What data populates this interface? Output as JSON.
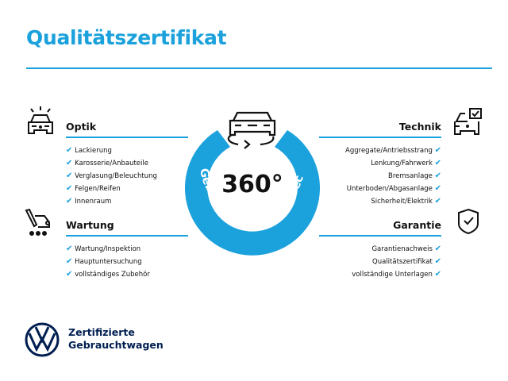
{
  "title": "Qualitätszertifikat",
  "center": {
    "value": "360°",
    "arc_text": "Gebrauchtwagen-Check"
  },
  "sections": {
    "optik": {
      "title": "Optik",
      "icon": "car-lights-icon",
      "items": [
        "Lackierung",
        "Karosserie/Anbauteile",
        "Verglasung/Beleuchtung",
        "Felgen/Reifen",
        "Innenraum"
      ]
    },
    "wartung": {
      "title": "Wartung",
      "icon": "service-tool-icon",
      "items": [
        "Wartung/Inspektion",
        "Hauptuntersuchung",
        "vollständiges Zubehör"
      ]
    },
    "technik": {
      "title": "Technik",
      "icon": "car-checkbox-icon",
      "items": [
        "Aggregate/Antriebsstrang",
        "Lenkung/Fahrwerk",
        "Bremsanlage",
        "Unterboden/Abgasanlage",
        "Sicherheit/Elektrik"
      ]
    },
    "garantie": {
      "title": "Garantie",
      "icon": "shield-check-icon",
      "items": [
        "Garantienachweis",
        "Qualitätszertifikat",
        "vollständige Unterlagen"
      ]
    }
  },
  "brand": {
    "line1": "Zertifizierte",
    "line2": "Gebrauchtwagen"
  },
  "colors": {
    "accent": "#1ba1dc",
    "brand": "#001e50"
  }
}
